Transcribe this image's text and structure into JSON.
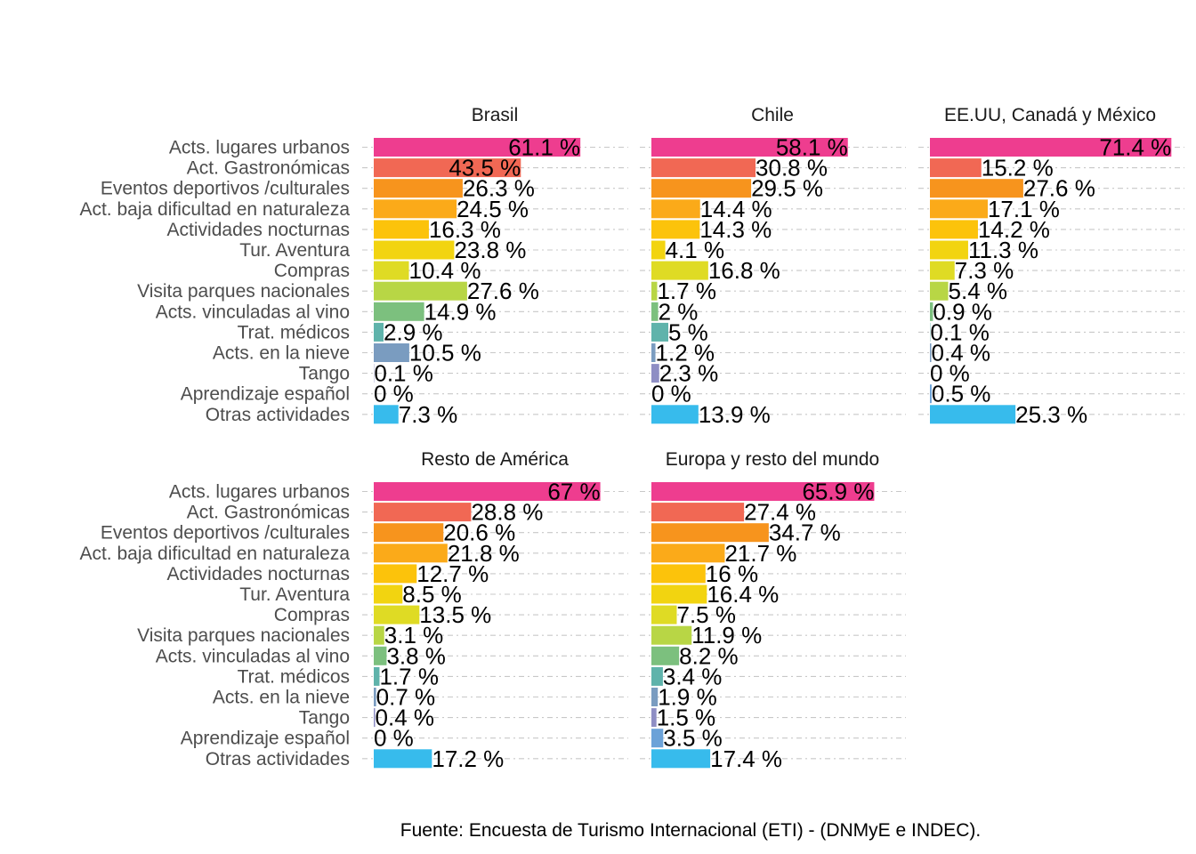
{
  "chart_data": {
    "type": "bar",
    "orientation": "horizontal",
    "categories": [
      "Acts. lugares urbanos",
      "Act. Gastronómicas",
      "Eventos deportivos /culturales",
      "Act. baja dificultad en naturaleza",
      "Actividades nocturnas",
      "Tur. Aventura",
      "Compras",
      "Visita parques nacionales",
      "Acts. vinculadas al vino",
      "Trat. médicos",
      "Acts. en la nieve",
      "Tango",
      "Aprendizaje español",
      "Otras actividades"
    ],
    "category_colors": [
      "#EE3D8F",
      "#F16854",
      "#F7941D",
      "#FBAA19",
      "#FCC30B",
      "#F2D410",
      "#DFDB24",
      "#B8D645",
      "#7CC07E",
      "#5FB3AB",
      "#7A9CC0",
      "#8E8EC4",
      "#6BA2D8",
      "#37BBEC"
    ],
    "value_suffix": " %",
    "xlim": [
      0,
      75
    ],
    "grid": true,
    "panels": [
      {
        "title": "Brasil",
        "values": [
          61.1,
          43.5,
          26.3,
          24.5,
          16.3,
          23.8,
          10.4,
          27.6,
          14.9,
          2.9,
          10.5,
          0.1,
          0,
          7.3
        ],
        "labels": [
          "61.1 %",
          "43.5 %",
          "26.3 %",
          "24.5 %",
          "16.3 %",
          "23.8 %",
          "10.4 %",
          "27.6 %",
          "14.9 %",
          "2.9 %",
          "10.5 %",
          "0.1 %",
          "0 %",
          "7.3 %"
        ]
      },
      {
        "title": "Chile",
        "values": [
          58.1,
          30.8,
          29.5,
          14.4,
          14.3,
          4.1,
          16.8,
          1.7,
          2,
          5,
          1.2,
          2.3,
          0,
          13.9
        ],
        "labels": [
          "58.1 %",
          "30.8 %",
          "29.5 %",
          "14.4 %",
          "14.3 %",
          "4.1 %",
          "16.8 %",
          "1.7 %",
          "2 %",
          "5 %",
          "1.2 %",
          "2.3 %",
          "0 %",
          "13.9 %"
        ]
      },
      {
        "title": "EE.UU, Canadá y México",
        "values": [
          71.4,
          15.2,
          27.6,
          17.1,
          14.2,
          11.3,
          7.3,
          5.4,
          0.9,
          0.1,
          0.4,
          0,
          0.5,
          25.3
        ],
        "labels": [
          "71.4 %",
          "15.2 %",
          "27.6 %",
          "17.1 %",
          "14.2 %",
          "11.3 %",
          "7.3 %",
          "5.4 %",
          "0.9 %",
          "0.1 %",
          "0.4 %",
          "0 %",
          "0.5 %",
          "25.3 %"
        ]
      },
      {
        "title": "Resto de América",
        "values": [
          67,
          28.8,
          20.6,
          21.8,
          12.7,
          8.5,
          13.5,
          3.1,
          3.8,
          1.7,
          0.7,
          0.4,
          0,
          17.2
        ],
        "labels": [
          "67 %",
          "28.8 %",
          "20.6 %",
          "21.8 %",
          "12.7 %",
          "8.5 %",
          "13.5 %",
          "3.1 %",
          "3.8 %",
          "1.7 %",
          "0.7 %",
          "0.4 %",
          "0 %",
          "17.2 %"
        ]
      },
      {
        "title": "Europa y resto del mundo",
        "values": [
          65.9,
          27.4,
          34.7,
          21.7,
          16,
          16.4,
          7.5,
          11.9,
          8.2,
          3.4,
          1.9,
          1.5,
          3.5,
          17.4
        ],
        "labels": [
          "65.9 %",
          "27.4 %",
          "34.7 %",
          "21.7 %",
          "16 %",
          "16.4 %",
          "7.5 %",
          "11.9 %",
          "8.2 %",
          "3.4 %",
          "1.9 %",
          "1.5 %",
          "3.5 %",
          "17.4 %"
        ]
      }
    ],
    "caption": "Fuente: Encuesta de Turismo Internacional (ETI) - (DNMyE e INDEC)."
  }
}
